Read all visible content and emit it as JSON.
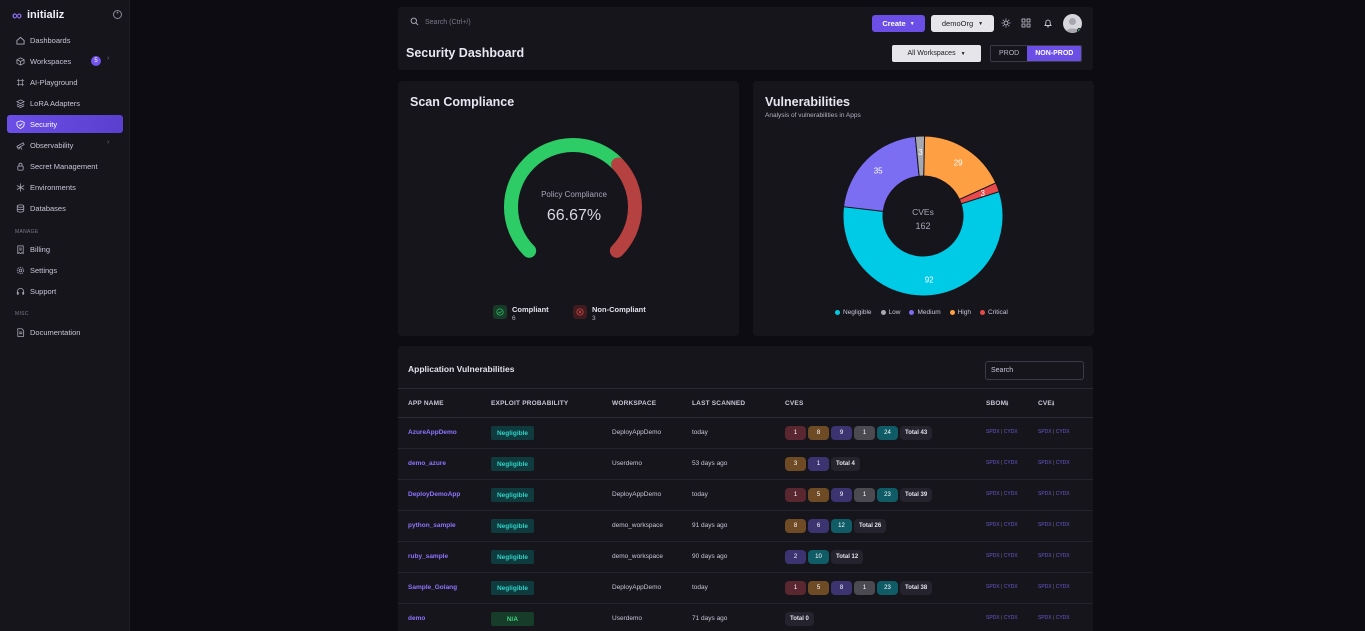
{
  "app": {
    "brand": "initializ"
  },
  "sidebar": {
    "items": [
      {
        "label": "Dashboards",
        "icon": "home-icon"
      },
      {
        "label": "Workspaces",
        "icon": "cube-icon",
        "badge": "5"
      },
      {
        "label": "AI-Playground",
        "icon": "ai-icon"
      },
      {
        "label": "LoRA Adapters",
        "icon": "layers-icon"
      },
      {
        "label": "Security",
        "icon": "shield-icon",
        "active": true
      },
      {
        "label": "Observability",
        "icon": "telescope-icon"
      },
      {
        "label": "Secret Management",
        "icon": "lock-icon"
      },
      {
        "label": "Environments",
        "icon": "snowflake-icon"
      },
      {
        "label": "Databases",
        "icon": "database-icon"
      }
    ],
    "manage_label": "MANAGE",
    "manage_items": [
      {
        "label": "Billing",
        "icon": "receipt-icon"
      },
      {
        "label": "Settings",
        "icon": "gear-icon"
      },
      {
        "label": "Support",
        "icon": "headset-icon"
      }
    ],
    "misc_label": "MISC",
    "misc_items": [
      {
        "label": "Documentation",
        "icon": "doc-icon"
      }
    ]
  },
  "topbar": {
    "search_placeholder": "Search (Ctrl+/)",
    "create_label": "Create",
    "org_label": "demoOrg",
    "page_title": "Security Dashboard",
    "workspace_filter": "All Workspaces",
    "env_prod": "PROD",
    "env_nonprod": "NON-PROD"
  },
  "compliance": {
    "title": "Scan Compliance",
    "gauge_label": "Policy Compliance",
    "gauge_value": "66.67%",
    "compliant_fraction": 0.6667,
    "compliant_label": "Compliant",
    "compliant_count": "6",
    "noncompliant_label": "Non-Compliant",
    "noncompliant_count": "3",
    "colors": {
      "compliant": "#2ecc67",
      "noncompliant": "#b54141"
    }
  },
  "vulnerabilities": {
    "title": "Vulnerabilities",
    "subtitle": "Analysis of vulnerabilities in Apps",
    "center_label": "CVEs",
    "center_value": "162",
    "legend": [
      {
        "label": "Negligible",
        "color": "#00cbe6"
      },
      {
        "label": "Low",
        "color": "#a8a8b0"
      },
      {
        "label": "Medium",
        "color": "#7b6ef2"
      },
      {
        "label": "High",
        "color": "#ff9f43"
      },
      {
        "label": "Critical",
        "color": "#e64a4a"
      }
    ]
  },
  "chart_data": {
    "type": "pie",
    "categories": [
      "Negligible",
      "Medium",
      "Low",
      "High",
      "Critical"
    ],
    "values": [
      92,
      35,
      3,
      29,
      3
    ],
    "colors": [
      "#00cbe6",
      "#7b6ef2",
      "#a8a8b0",
      "#ff9f43",
      "#e64a4a"
    ]
  },
  "app_vulns": {
    "title": "Application Vulnerabilities",
    "search_placeholder": "Search",
    "headers": [
      "APP NAME",
      "EXPLOIT PROBABILITY",
      "WORKSPACE",
      "LAST SCANNED",
      "CVES",
      "SBOM",
      "CVE"
    ],
    "sbom_link_1": "SPDX",
    "sbom_link_2": "CYDX",
    "rows": [
      {
        "app": "AzureAppDemo",
        "prob": "Negligible",
        "workspace": "DeployAppDemo",
        "scanned": "today",
        "cves": [
          {
            "v": "1",
            "c": "#5a2630"
          },
          {
            "v": "8",
            "c": "#6e4a25"
          },
          {
            "v": "9",
            "c": "#3b3470"
          },
          {
            "v": "1",
            "c": "#4a4a50"
          },
          {
            "v": "24",
            "c": "#0f5c66"
          }
        ],
        "total": "Total 43"
      },
      {
        "app": "demo_azure",
        "prob": "Negligible",
        "workspace": "Userdemo",
        "scanned": "53 days ago",
        "cves": [
          {
            "v": "3",
            "c": "#6e4a25"
          },
          {
            "v": "1",
            "c": "#3b3470"
          }
        ],
        "total": "Total 4"
      },
      {
        "app": "DeployDemoApp",
        "prob": "Negligible",
        "workspace": "DeployAppDemo",
        "scanned": "today",
        "cves": [
          {
            "v": "1",
            "c": "#5a2630"
          },
          {
            "v": "5",
            "c": "#6e4a25"
          },
          {
            "v": "9",
            "c": "#3b3470"
          },
          {
            "v": "1",
            "c": "#4a4a50"
          },
          {
            "v": "23",
            "c": "#0f5c66"
          }
        ],
        "total": "Total 39"
      },
      {
        "app": "python_sample",
        "prob": "Negligible",
        "workspace": "demo_workspace",
        "scanned": "91 days ago",
        "cves": [
          {
            "v": "8",
            "c": "#6e4a25"
          },
          {
            "v": "6",
            "c": "#3b3470"
          },
          {
            "v": "12",
            "c": "#0f5c66"
          }
        ],
        "total": "Total 26"
      },
      {
        "app": "ruby_sample",
        "prob": "Negligible",
        "workspace": "demo_workspace",
        "scanned": "90 days ago",
        "cves": [
          {
            "v": "2",
            "c": "#3b3470"
          },
          {
            "v": "10",
            "c": "#0f5c66"
          }
        ],
        "total": "Total 12"
      },
      {
        "app": "Sample_Golang",
        "prob": "Negligible",
        "workspace": "DeployAppDemo",
        "scanned": "today",
        "cves": [
          {
            "v": "1",
            "c": "#5a2630"
          },
          {
            "v": "5",
            "c": "#6e4a25"
          },
          {
            "v": "8",
            "c": "#3b3470"
          },
          {
            "v": "1",
            "c": "#4a4a50"
          },
          {
            "v": "23",
            "c": "#0f5c66"
          }
        ],
        "total": "Total 38"
      },
      {
        "app": "demo",
        "prob": "N/A",
        "workspace": "Userdemo",
        "scanned": "71 days ago",
        "cves": [],
        "total": "Total 0"
      }
    ]
  }
}
